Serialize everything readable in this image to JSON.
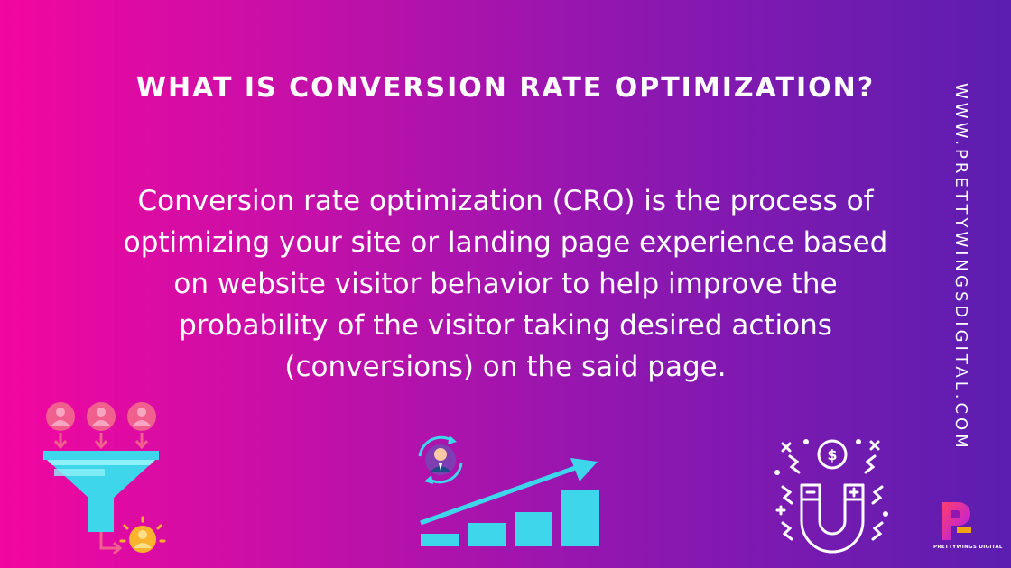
{
  "title": "WHAT IS CONVERSION RATE OPTIMIZATION?",
  "body_lines": [
    "Conversion rate optimization (CRO) is the process of",
    "optimizing your site or landing page experience based",
    "on website visitor behavior to help improve the",
    "probability of the visitor taking desired actions",
    "(conversions) on the said page."
  ],
  "website": "WWW.PRETTYWINGSDIGITAL.COM",
  "logo_text": "PRETTYWINGS DIGITAL",
  "icons": [
    "sales-funnel-icon",
    "growth-chart-icon",
    "customer-magnet-icon"
  ],
  "colors": {
    "gradient_start": "#f2079f",
    "gradient_end": "#5b1eb0",
    "accent_cyan": "#3dd6ea",
    "accent_pink": "#f05f8e",
    "accent_yellow": "#f9b32c"
  }
}
